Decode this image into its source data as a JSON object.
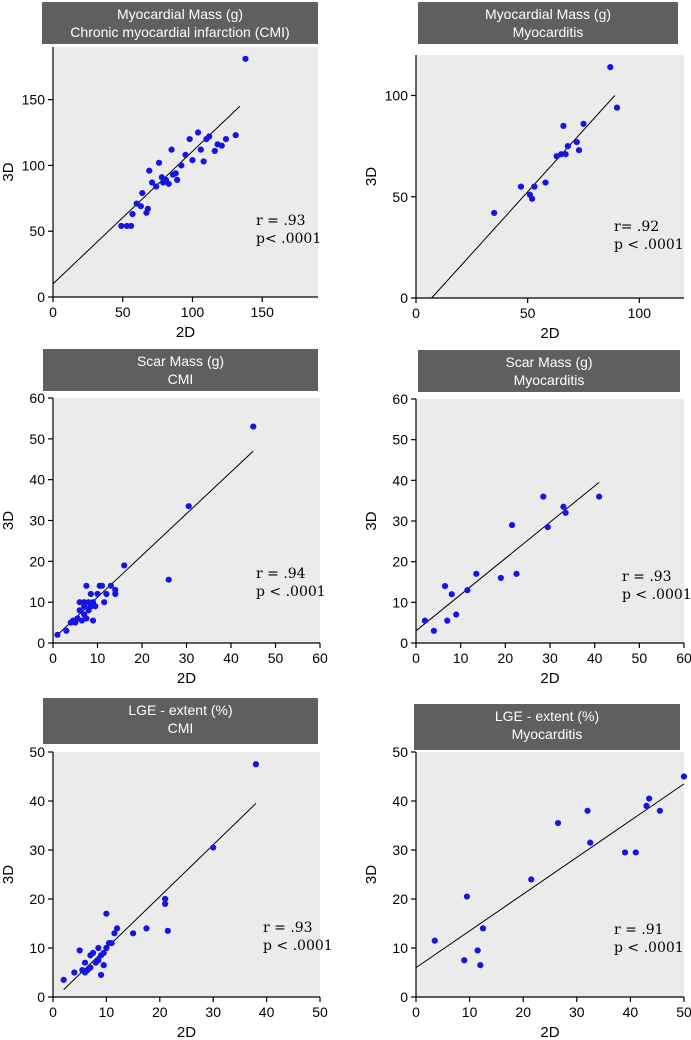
{
  "chart_data": [
    {
      "type": "scatter",
      "title": [
        "Myocardial Mass (g)",
        "Chronic myocardial infarction (CMI)"
      ],
      "xlabel": "2D",
      "ylabel": "3D",
      "xlim": [
        0,
        190
      ],
      "ylim": [
        0,
        190
      ],
      "xticks": [
        0,
        50,
        100,
        150
      ],
      "yticks": [
        0,
        50,
        100,
        150
      ],
      "grid": false,
      "fit_line": {
        "x": [
          0,
          134
        ],
        "y": [
          10,
          145
        ]
      },
      "stats": [
        "r = .93",
        "p< .0001"
      ],
      "points": [
        [
          49,
          54
        ],
        [
          53,
          54
        ],
        [
          56,
          54
        ],
        [
          57,
          63
        ],
        [
          60,
          71
        ],
        [
          63,
          69
        ],
        [
          64,
          79
        ],
        [
          67,
          64
        ],
        [
          68,
          67
        ],
        [
          69,
          96
        ],
        [
          71,
          87
        ],
        [
          74,
          84
        ],
        [
          76,
          102
        ],
        [
          78,
          91
        ],
        [
          79,
          87
        ],
        [
          81,
          89
        ],
        [
          83,
          86
        ],
        [
          85,
          112
        ],
        [
          86,
          93
        ],
        [
          88,
          94
        ],
        [
          89,
          89
        ],
        [
          92,
          100
        ],
        [
          95,
          108
        ],
        [
          98,
          120
        ],
        [
          100,
          104
        ],
        [
          104,
          125
        ],
        [
          106,
          112
        ],
        [
          108,
          103
        ],
        [
          110,
          120
        ],
        [
          112,
          122
        ],
        [
          116,
          111
        ],
        [
          118,
          116
        ],
        [
          121,
          115
        ],
        [
          124,
          120
        ],
        [
          131,
          123
        ],
        [
          138,
          181
        ]
      ]
    },
    {
      "type": "scatter",
      "title": [
        "Myocardial Mass (g)",
        "Myocarditis"
      ],
      "xlabel": "2D",
      "ylabel": "3D",
      "xlim": [
        0,
        120
      ],
      "ylim": [
        0,
        120
      ],
      "xticks": [
        0,
        50,
        100
      ],
      "yticks": [
        0,
        50,
        100
      ],
      "grid": false,
      "fit_line": {
        "x": [
          7,
          89
        ],
        "y": [
          0,
          100
        ]
      },
      "stats": [
        "r= .92",
        "p < .0001"
      ],
      "points": [
        [
          35,
          42
        ],
        [
          47,
          55
        ],
        [
          51,
          51
        ],
        [
          52,
          49
        ],
        [
          53,
          55
        ],
        [
          58,
          57
        ],
        [
          63,
          70
        ],
        [
          65,
          71
        ],
        [
          66,
          85
        ],
        [
          67,
          71
        ],
        [
          68,
          75
        ],
        [
          72,
          77
        ],
        [
          73,
          73
        ],
        [
          75,
          86
        ],
        [
          87,
          114
        ],
        [
          90,
          94
        ]
      ]
    },
    {
      "type": "scatter",
      "title": [
        "Scar Mass (g)",
        "CMI"
      ],
      "xlabel": "2D",
      "ylabel": "3D",
      "xlim": [
        0,
        60
      ],
      "ylim": [
        0,
        60
      ],
      "xticks": [
        0,
        10,
        20,
        30,
        40,
        50,
        60
      ],
      "yticks": [
        0,
        10,
        20,
        30,
        40,
        50,
        60
      ],
      "grid": false,
      "fit_line": {
        "x": [
          1,
          45
        ],
        "y": [
          2,
          47
        ]
      },
      "stats": [
        "r = .94",
        "p < .0001"
      ],
      "points": [
        [
          1,
          2
        ],
        [
          3,
          3
        ],
        [
          4,
          5
        ],
        [
          4.5,
          5.5
        ],
        [
          5,
          5
        ],
        [
          5.5,
          6
        ],
        [
          6,
          10
        ],
        [
          6,
          8
        ],
        [
          6.5,
          5.5
        ],
        [
          7,
          9
        ],
        [
          7,
          7
        ],
        [
          7,
          10
        ],
        [
          7.5,
          14
        ],
        [
          7.5,
          6
        ],
        [
          8,
          10
        ],
        [
          8,
          8
        ],
        [
          8.5,
          9
        ],
        [
          8.5,
          12
        ],
        [
          9,
          10
        ],
        [
          9,
          5.5
        ],
        [
          9.5,
          9
        ],
        [
          10,
          12
        ],
        [
          10.5,
          14
        ],
        [
          11,
          14
        ],
        [
          11.5,
          10
        ],
        [
          12,
          12
        ],
        [
          13,
          14
        ],
        [
          14,
          13
        ],
        [
          14,
          12
        ],
        [
          16,
          19
        ],
        [
          26,
          15.5
        ],
        [
          30.5,
          33.5
        ],
        [
          45,
          53
        ]
      ]
    },
    {
      "type": "scatter",
      "title": [
        "Scar Mass (g)",
        "Myocarditis"
      ],
      "xlabel": "2D",
      "ylabel": "3D",
      "xlim": [
        0,
        60
      ],
      "ylim": [
        0,
        60
      ],
      "xticks": [
        0,
        10,
        20,
        30,
        40,
        50,
        60
      ],
      "yticks": [
        0,
        10,
        20,
        30,
        40,
        50,
        60
      ],
      "grid": false,
      "fit_line": {
        "x": [
          0,
          41
        ],
        "y": [
          3,
          39.5
        ]
      },
      "stats": [
        "r = .93",
        "p < .0001"
      ],
      "points": [
        [
          2,
          5.5
        ],
        [
          4,
          3
        ],
        [
          6.5,
          14
        ],
        [
          7,
          5.5
        ],
        [
          8,
          12
        ],
        [
          9,
          7
        ],
        [
          11.5,
          13
        ],
        [
          13.5,
          17
        ],
        [
          19,
          16
        ],
        [
          21.5,
          29
        ],
        [
          22.5,
          17
        ],
        [
          28.5,
          36
        ],
        [
          29.5,
          28.5
        ],
        [
          33,
          33.5
        ],
        [
          33.5,
          32
        ],
        [
          41,
          36
        ]
      ]
    },
    {
      "type": "scatter",
      "title": [
        "LGE - extent (%)",
        "CMI"
      ],
      "xlabel": "2D",
      "ylabel": "3D",
      "xlim": [
        0,
        50
      ],
      "ylim": [
        0,
        50
      ],
      "xticks": [
        0,
        10,
        20,
        30,
        40,
        50
      ],
      "yticks": [
        0,
        10,
        20,
        30,
        40,
        50
      ],
      "grid": false,
      "fit_line": {
        "x": [
          2,
          38
        ],
        "y": [
          1.5,
          39.5
        ]
      },
      "stats": [
        "r = .93",
        "p < .0001"
      ],
      "points": [
        [
          2,
          3.5
        ],
        [
          4,
          5
        ],
        [
          5,
          9.5
        ],
        [
          5.5,
          5.5
        ],
        [
          6,
          5
        ],
        [
          6,
          7
        ],
        [
          6.5,
          5.5
        ],
        [
          7,
          8.5
        ],
        [
          7,
          6
        ],
        [
          7.5,
          9
        ],
        [
          8,
          7
        ],
        [
          8.5,
          10
        ],
        [
          8.5,
          7.5
        ],
        [
          9,
          8.5
        ],
        [
          9,
          4.5
        ],
        [
          9.5,
          9
        ],
        [
          9.5,
          6.5
        ],
        [
          10,
          10
        ],
        [
          10,
          17
        ],
        [
          10.5,
          11
        ],
        [
          11,
          11
        ],
        [
          11.5,
          13
        ],
        [
          12,
          14
        ],
        [
          15,
          13
        ],
        [
          17.5,
          14
        ],
        [
          21,
          20
        ],
        [
          21,
          19
        ],
        [
          21.5,
          13.5
        ],
        [
          30,
          30.5
        ],
        [
          38,
          47.5
        ]
      ]
    },
    {
      "type": "scatter",
      "title": [
        "LGE - extent (%)",
        "Myocarditis"
      ],
      "xlabel": "2D",
      "ylabel": "3D",
      "xlim": [
        0,
        50
      ],
      "ylim": [
        0,
        50
      ],
      "xticks": [
        0,
        10,
        20,
        30,
        40,
        50
      ],
      "yticks": [
        0,
        10,
        20,
        30,
        40,
        50
      ],
      "grid": false,
      "fit_line": {
        "x": [
          0,
          50
        ],
        "y": [
          6,
          43.5
        ]
      },
      "stats": [
        "r = .91",
        "p < .0001"
      ],
      "points": [
        [
          3.5,
          11.5
        ],
        [
          9,
          7.5
        ],
        [
          9.5,
          20.5
        ],
        [
          11.5,
          9.5
        ],
        [
          12,
          6.5
        ],
        [
          12.5,
          14
        ],
        [
          21.5,
          24
        ],
        [
          26.5,
          35.5
        ],
        [
          32,
          38
        ],
        [
          32.5,
          31.5
        ],
        [
          39,
          29.5
        ],
        [
          41,
          29.5
        ],
        [
          43,
          39
        ],
        [
          43.5,
          40.5
        ],
        [
          45.5,
          38
        ],
        [
          50,
          45
        ]
      ]
    }
  ]
}
